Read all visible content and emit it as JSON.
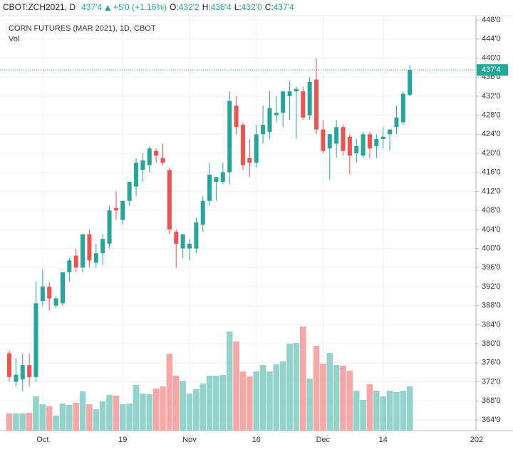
{
  "header": {
    "symbol": "CBOT:ZCH2021, D",
    "price": "437'4",
    "change": "+5'0 (+1.16%)",
    "open_label": "O:",
    "open": "432'2",
    "high_label": "H:",
    "high": "438'4",
    "low_label": "L:",
    "low": "432'0",
    "close_label": "C:",
    "close": "437'4"
  },
  "chart_data": {
    "type": "candlestick",
    "title": "CORN FUTURES (MAR 2021), 1D, CBOT",
    "volume_label": "Vol",
    "categories": [
      null,
      null,
      null,
      null,
      null,
      "Oct",
      null,
      null,
      null,
      null,
      null,
      null,
      null,
      null,
      null,
      null,
      null,
      "19",
      null,
      null,
      null,
      null,
      null,
      null,
      null,
      null,
      null,
      "Nov",
      null,
      null,
      null,
      null,
      null,
      null,
      null,
      null,
      null,
      "16",
      null,
      null,
      null,
      null,
      null,
      null,
      null,
      null,
      null,
      "Dec",
      null,
      null,
      null,
      null,
      null,
      null,
      null,
      null,
      "14",
      null,
      null,
      null,
      null,
      null,
      null,
      null,
      null,
      null,
      null,
      null,
      null,
      null,
      "202"
    ],
    "open": [
      378,
      372,
      372.5,
      375.5,
      373,
      389,
      392,
      388,
      388.5,
      395,
      398.5,
      396,
      403,
      397,
      399,
      401,
      408.5,
      406,
      410,
      413,
      416.5,
      417.5,
      420.5,
      419,
      416.5,
      403.5,
      400,
      400,
      400,
      405,
      410,
      414,
      414,
      416,
      430,
      426,
      419,
      418,
      424,
      424.5,
      428,
      428.5,
      432,
      433,
      433,
      428,
      435.5,
      425,
      421,
      422,
      425.5,
      423.5,
      420,
      419.5,
      424,
      421.5,
      423,
      424,
      425.5,
      426.5,
      432.25,
      null,
      null,
      null,
      null,
      null,
      null,
      null,
      null,
      null,
      null
    ],
    "high": [
      378.5,
      377,
      378,
      378,
      393,
      395.5,
      393,
      390,
      395,
      398,
      400,
      403,
      404,
      401,
      403,
      409,
      412,
      410,
      414,
      419,
      420,
      421.5,
      421,
      422,
      417,
      404,
      403,
      402,
      406.5,
      411,
      418,
      415,
      418,
      433,
      432,
      426.5,
      423,
      426,
      430,
      433,
      432,
      433,
      435,
      434,
      434,
      436,
      440,
      427,
      424,
      427,
      426,
      424,
      423,
      424.5,
      424.5,
      424,
      425.5,
      425,
      430,
      433,
      438.5,
      null,
      null,
      null,
      null,
      null,
      null,
      null,
      null,
      null,
      null
    ],
    "low": [
      372,
      371,
      370,
      371,
      372,
      388,
      387,
      387.5,
      388,
      393,
      395,
      395,
      396,
      396,
      396.5,
      400,
      406,
      405,
      409,
      411,
      414,
      416,
      418,
      417.5,
      403,
      396,
      398,
      397.5,
      399,
      403.5,
      409,
      410,
      413.5,
      413.5,
      424,
      416.5,
      415,
      417,
      422,
      423,
      426.5,
      425.5,
      427,
      423,
      427,
      427,
      424,
      420,
      414.5,
      419,
      419.5,
      415.5,
      418,
      419,
      419,
      419,
      421,
      420.5,
      424,
      426,
      432,
      null,
      null,
      null,
      null,
      null,
      null,
      null,
      null,
      null,
      null
    ],
    "close": [
      373,
      373.5,
      375.5,
      373,
      388.5,
      392,
      389.5,
      389.5,
      395,
      397.5,
      396,
      403,
      397.5,
      399,
      402,
      408,
      408,
      410,
      414,
      418,
      418.5,
      421,
      419.5,
      418,
      404,
      401,
      403,
      401,
      405.5,
      410,
      415.5,
      415,
      416,
      431,
      425.5,
      417.5,
      418,
      424,
      426,
      429.5,
      428.5,
      433,
      433,
      433.5,
      427.5,
      435,
      425,
      420.5,
      424,
      425.5,
      420.5,
      419.5,
      421.5,
      424,
      421,
      423,
      423.5,
      425,
      427.5,
      432.5,
      437.5,
      null,
      null,
      null,
      null,
      null,
      null,
      null,
      null,
      null,
      null
    ],
    "volume": [
      24,
      24,
      24,
      25,
      48,
      37,
      34,
      21,
      38,
      36,
      39,
      55,
      37,
      30,
      41,
      50,
      49,
      37,
      38,
      64,
      52,
      51,
      59,
      62,
      108,
      77,
      70,
      52,
      58,
      66,
      77,
      77,
      78,
      139,
      125,
      83,
      76,
      83,
      92,
      83,
      93,
      97,
      122,
      123,
      146,
      73,
      119,
      94,
      109,
      92,
      91,
      84,
      56,
      43,
      65,
      56,
      48,
      56,
      54,
      56,
      62,
      null,
      null,
      null,
      null,
      null,
      null,
      null,
      null,
      null,
      null
    ],
    "up_color": "#26a69a",
    "down_color": "#ef5350",
    "volume_up_color": "#93d3cc",
    "volume_down_color": "#f7a8a6",
    "ylim": [
      361.75,
      448.9
    ],
    "yticks": [
      {
        "value": 364,
        "label": "364'0"
      },
      {
        "value": 368,
        "label": "368'0"
      },
      {
        "value": 372,
        "label": "372'0"
      },
      {
        "value": 376,
        "label": "376'0"
      },
      {
        "value": 380,
        "label": "380'0"
      },
      {
        "value": 384,
        "label": "384'0"
      },
      {
        "value": 388,
        "label": "388'0"
      },
      {
        "value": 392,
        "label": "392'0"
      },
      {
        "value": 396,
        "label": "396'0"
      },
      {
        "value": 400,
        "label": "400'0"
      },
      {
        "value": 404,
        "label": "404'0"
      },
      {
        "value": 408,
        "label": "408'0"
      },
      {
        "value": 412,
        "label": "412'0"
      },
      {
        "value": 416,
        "label": "416'0"
      },
      {
        "value": 420,
        "label": "420'0"
      },
      {
        "value": 424,
        "label": "424'0"
      },
      {
        "value": 428,
        "label": "428'0"
      },
      {
        "value": 432,
        "label": "432'0"
      },
      {
        "value": 436,
        "label": "436'0"
      },
      {
        "value": 440,
        "label": "440'0"
      },
      {
        "value": 444,
        "label": "444'0"
      },
      {
        "value": 448,
        "label": "448'0"
      }
    ],
    "last_price": {
      "value": 437.5,
      "label": "437'4"
    },
    "grid": true
  }
}
